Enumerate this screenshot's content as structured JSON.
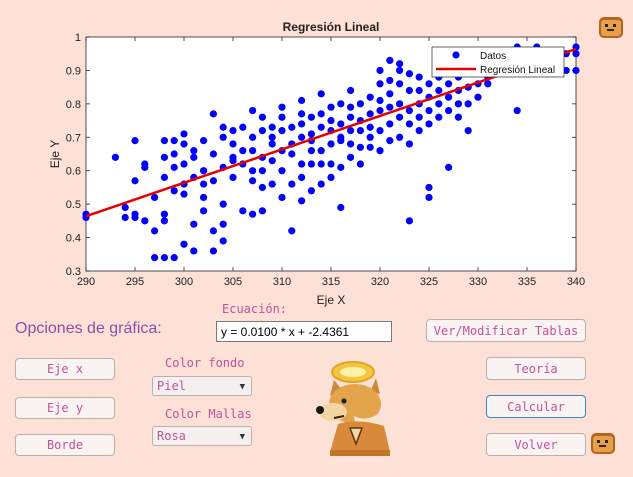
{
  "chart_data": {
    "type": "scatter",
    "title": "Regresión Lineal",
    "xlabel": "Eje X",
    "ylabel": "Eje Y",
    "xlim": [
      290,
      340
    ],
    "ylim": [
      0.3,
      1.0
    ],
    "xticks": [
      "290",
      "295",
      "300",
      "305",
      "310",
      "315",
      "320",
      "325",
      "330",
      "335",
      "340"
    ],
    "yticks": [
      "0.3",
      "0.4",
      "0.5",
      "0.6",
      "0.7",
      "0.8",
      "0.9",
      "1"
    ],
    "grid": false,
    "legend_position": "top-right",
    "series": [
      {
        "name": "Datos",
        "marker": "circle",
        "color": "#0000ff",
        "points": [
          [
            290,
            0.46
          ],
          [
            290,
            0.47
          ],
          [
            293,
            0.64
          ],
          [
            294,
            0.49
          ],
          [
            294,
            0.46
          ],
          [
            295,
            0.47
          ],
          [
            295,
            0.46
          ],
          [
            295,
            0.57
          ],
          [
            295,
            0.69
          ],
          [
            296,
            0.45
          ],
          [
            296,
            0.62
          ],
          [
            296,
            0.61
          ],
          [
            297,
            0.42
          ],
          [
            297,
            0.52
          ],
          [
            297,
            0.34
          ],
          [
            298,
            0.34
          ],
          [
            298,
            0.45
          ],
          [
            298,
            0.47
          ],
          [
            298,
            0.69
          ],
          [
            298,
            0.64
          ],
          [
            298,
            0.58
          ],
          [
            299,
            0.34
          ],
          [
            299,
            0.54
          ],
          [
            299,
            0.69
          ],
          [
            299,
            0.61
          ],
          [
            299,
            0.65
          ],
          [
            300,
            0.38
          ],
          [
            300,
            0.56
          ],
          [
            300,
            0.62
          ],
          [
            300,
            0.53
          ],
          [
            300,
            0.71
          ],
          [
            300,
            0.68
          ],
          [
            301,
            0.36
          ],
          [
            301,
            0.44
          ],
          [
            301,
            0.64
          ],
          [
            301,
            0.58
          ],
          [
            301,
            0.66
          ],
          [
            302,
            0.52
          ],
          [
            302,
            0.48
          ],
          [
            302,
            0.6
          ],
          [
            302,
            0.56
          ],
          [
            302,
            0.69
          ],
          [
            303,
            0.36
          ],
          [
            303,
            0.42
          ],
          [
            303,
            0.57
          ],
          [
            303,
            0.65
          ],
          [
            303,
            0.77
          ],
          [
            304,
            0.5
          ],
          [
            304,
            0.39
          ],
          [
            304,
            0.44
          ],
          [
            304,
            0.61
          ],
          [
            304,
            0.7
          ],
          [
            304,
            0.73
          ],
          [
            305,
            0.58
          ],
          [
            305,
            0.64
          ],
          [
            305,
            0.68
          ],
          [
            305,
            0.72
          ],
          [
            305,
            0.63
          ],
          [
            306,
            0.62
          ],
          [
            306,
            0.48
          ],
          [
            306,
            0.73
          ],
          [
            306,
            0.66
          ],
          [
            307,
            0.6
          ],
          [
            307,
            0.66
          ],
          [
            307,
            0.7
          ],
          [
            307,
            0.78
          ],
          [
            307,
            0.47
          ],
          [
            307,
            0.57
          ],
          [
            308,
            0.55
          ],
          [
            308,
            0.6
          ],
          [
            308,
            0.64
          ],
          [
            308,
            0.72
          ],
          [
            308,
            0.76
          ],
          [
            308,
            0.48
          ],
          [
            309,
            0.7
          ],
          [
            309,
            0.73
          ],
          [
            309,
            0.68
          ],
          [
            309,
            0.63
          ],
          [
            309,
            0.56
          ],
          [
            310,
            0.52
          ],
          [
            310,
            0.6
          ],
          [
            310,
            0.66
          ],
          [
            310,
            0.72
          ],
          [
            310,
            0.76
          ],
          [
            310,
            0.79
          ],
          [
            311,
            0.42
          ],
          [
            311,
            0.65
          ],
          [
            311,
            0.68
          ],
          [
            311,
            0.73
          ],
          [
            311,
            0.56
          ],
          [
            312,
            0.51
          ],
          [
            312,
            0.58
          ],
          [
            312,
            0.62
          ],
          [
            312,
            0.7
          ],
          [
            312,
            0.74
          ],
          [
            312,
            0.77
          ],
          [
            312,
            0.81
          ],
          [
            313,
            0.54
          ],
          [
            313,
            0.62
          ],
          [
            313,
            0.66
          ],
          [
            313,
            0.71
          ],
          [
            313,
            0.76
          ],
          [
            313,
            0.69
          ],
          [
            314,
            0.56
          ],
          [
            314,
            0.62
          ],
          [
            314,
            0.66
          ],
          [
            314,
            0.73
          ],
          [
            314,
            0.77
          ],
          [
            314,
            0.83
          ],
          [
            315,
            0.58
          ],
          [
            315,
            0.62
          ],
          [
            315,
            0.68
          ],
          [
            315,
            0.72
          ],
          [
            315,
            0.75
          ],
          [
            315,
            0.79
          ],
          [
            316,
            0.49
          ],
          [
            316,
            0.61
          ],
          [
            316,
            0.7
          ],
          [
            316,
            0.74
          ],
          [
            316,
            0.8
          ],
          [
            316,
            0.69
          ],
          [
            317,
            0.64
          ],
          [
            317,
            0.68
          ],
          [
            317,
            0.72
          ],
          [
            317,
            0.76
          ],
          [
            317,
            0.79
          ],
          [
            317,
            0.84
          ],
          [
            318,
            0.62
          ],
          [
            318,
            0.67
          ],
          [
            318,
            0.72
          ],
          [
            318,
            0.75
          ],
          [
            318,
            0.8
          ],
          [
            319,
            0.67
          ],
          [
            319,
            0.7
          ],
          [
            319,
            0.73
          ],
          [
            319,
            0.77
          ],
          [
            319,
            0.82
          ],
          [
            320,
            0.66
          ],
          [
            320,
            0.72
          ],
          [
            320,
            0.78
          ],
          [
            320,
            0.81
          ],
          [
            320,
            0.86
          ],
          [
            320,
            0.9
          ],
          [
            321,
            0.69
          ],
          [
            321,
            0.74
          ],
          [
            321,
            0.79
          ],
          [
            321,
            0.83
          ],
          [
            321,
            0.87
          ],
          [
            321,
            0.93
          ],
          [
            322,
            0.7
          ],
          [
            322,
            0.76
          ],
          [
            322,
            0.8
          ],
          [
            322,
            0.86
          ],
          [
            322,
            0.9
          ],
          [
            322,
            0.92
          ],
          [
            323,
            0.45
          ],
          [
            323,
            0.68
          ],
          [
            323,
            0.74
          ],
          [
            323,
            0.78
          ],
          [
            323,
            0.84
          ],
          [
            323,
            0.89
          ],
          [
            324,
            0.72
          ],
          [
            324,
            0.76
          ],
          [
            324,
            0.8
          ],
          [
            324,
            0.84
          ],
          [
            324,
            0.88
          ],
          [
            325,
            0.52
          ],
          [
            325,
            0.55
          ],
          [
            325,
            0.74
          ],
          [
            325,
            0.78
          ],
          [
            325,
            0.82
          ],
          [
            325,
            0.86
          ],
          [
            326,
            0.76
          ],
          [
            326,
            0.8
          ],
          [
            326,
            0.84
          ],
          [
            326,
            0.88
          ],
          [
            326,
            0.93
          ],
          [
            327,
            0.61
          ],
          [
            327,
            0.78
          ],
          [
            327,
            0.82
          ],
          [
            327,
            0.86
          ],
          [
            327,
            0.9
          ],
          [
            328,
            0.76
          ],
          [
            328,
            0.8
          ],
          [
            328,
            0.84
          ],
          [
            328,
            0.88
          ],
          [
            329,
            0.72
          ],
          [
            329,
            0.8
          ],
          [
            329,
            0.85
          ],
          [
            329,
            0.9
          ],
          [
            330,
            0.82
          ],
          [
            330,
            0.86
          ],
          [
            330,
            0.9
          ],
          [
            331,
            0.88
          ],
          [
            331,
            0.86
          ],
          [
            332,
            0.89
          ],
          [
            332,
            0.94
          ],
          [
            333,
            0.93
          ],
          [
            334,
            0.78
          ],
          [
            334,
            0.97
          ],
          [
            335,
            0.94
          ],
          [
            335,
            0.96
          ],
          [
            336,
            0.97
          ],
          [
            337,
            0.91
          ],
          [
            338,
            0.95
          ],
          [
            339,
            0.9
          ],
          [
            339,
            0.95
          ],
          [
            340,
            0.9
          ],
          [
            340,
            0.95
          ],
          [
            340,
            0.97
          ]
        ]
      },
      {
        "name": "Regresión Lineal",
        "type": "line",
        "color": "#e80000",
        "slope": 0.01,
        "intercept": -2.4361,
        "x": [
          290,
          340
        ]
      }
    ]
  },
  "equation": {
    "label": "Ecuación:",
    "value": "y = 0.0100 * x + -2.4361"
  },
  "options_title": "Opciones de gráfica:",
  "buttons": {
    "eje_x": "Eje x",
    "eje_y": "Eje y",
    "borde": "Borde",
    "ver_tablas": "Ver/Modificar Tablas",
    "teoria": "Teoría",
    "calcular": "Calcular",
    "volver": "Volver"
  },
  "color_fondo": {
    "label": "Color fondo",
    "selected": "Piel"
  },
  "color_mallas": {
    "label": "Color Mallas",
    "selected": "Rosa"
  },
  "icons": {
    "top_right": "toast-icon",
    "mascot": "doge-praying-icon",
    "volver_side": "toast-icon"
  },
  "colors": {
    "background": "#fde0d6",
    "accent_text": "#c0539a",
    "data_points": "#0000ff",
    "regression_line": "#e80000"
  }
}
